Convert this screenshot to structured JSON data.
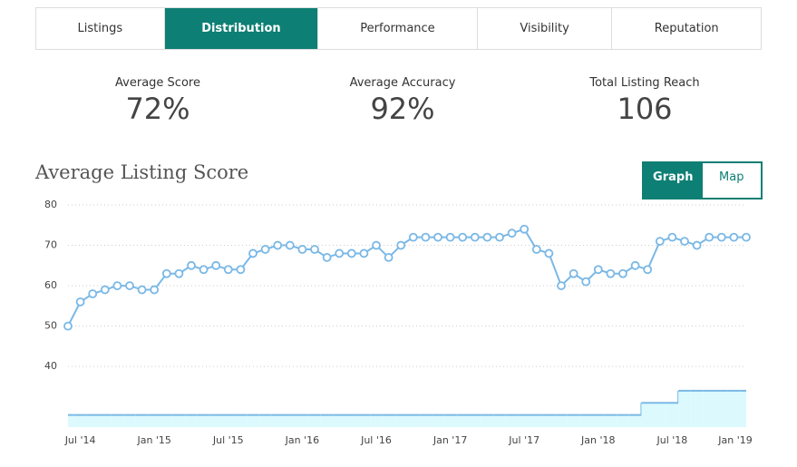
{
  "tabs": [
    {
      "label": "Listings",
      "active": false
    },
    {
      "label": "Distribution",
      "active": true
    },
    {
      "label": "Performance",
      "active": false
    },
    {
      "label": "Visibility",
      "active": false
    },
    {
      "label": "Reputation",
      "active": false
    }
  ],
  "stats": [
    {
      "label": "Average Score",
      "value": "72%"
    },
    {
      "label": "Average Accuracy",
      "value": "92%"
    },
    {
      "label": "Total Listing Reach",
      "value": "106"
    }
  ],
  "toggle": [
    {
      "label": "Graph",
      "active": true
    },
    {
      "label": "Map",
      "active": false
    }
  ],
  "chart_data": {
    "type": "line",
    "title": "Average Listing Score",
    "x": [
      null,
      "Jul '14",
      null,
      null,
      null,
      null,
      null,
      "Jan '15",
      null,
      null,
      null,
      null,
      null,
      "Jul '15",
      null,
      null,
      null,
      null,
      null,
      "Jan '16",
      null,
      null,
      null,
      null,
      null,
      "Jul '16",
      null,
      null,
      null,
      null,
      null,
      "Jan '17",
      null,
      null,
      null,
      null,
      null,
      "Jul '17",
      null,
      null,
      null,
      null,
      null,
      "Jan '18",
      null,
      null,
      null,
      null,
      null,
      "Jul '18",
      null,
      null,
      null,
      null,
      null,
      "Jan '19"
    ],
    "series": [
      {
        "type": "line",
        "color": "#7ab8e6",
        "values": [
          50,
          56,
          58,
          59,
          60,
          60,
          59,
          59,
          63,
          63,
          65,
          64,
          65,
          64,
          64,
          68,
          69,
          70,
          70,
          69,
          69,
          67,
          68,
          68,
          68,
          70,
          67,
          70,
          72,
          72,
          72,
          72,
          72,
          72,
          72,
          72,
          73,
          74,
          69,
          68,
          60,
          63,
          61,
          64,
          63,
          63,
          65,
          64,
          71,
          72,
          71,
          70,
          72,
          72,
          72,
          72
        ]
      },
      {
        "type": "step-area",
        "color": "#7ab8e6",
        "fill": "#dcfafd",
        "values": [
          28,
          28,
          28,
          28,
          28,
          28,
          28,
          28,
          28,
          28,
          28,
          28,
          28,
          28,
          28,
          28,
          28,
          28,
          28,
          28,
          28,
          28,
          28,
          28,
          28,
          28,
          28,
          28,
          28,
          28,
          28,
          28,
          28,
          28,
          28,
          28,
          28,
          28,
          28,
          28,
          28,
          28,
          28,
          28,
          28,
          28,
          28,
          31,
          31,
          31,
          34,
          34,
          34,
          34,
          34,
          34
        ]
      }
    ],
    "ylim": [
      25,
      80
    ],
    "yticks": [
      40,
      50,
      60,
      70,
      80
    ],
    "grid": true
  }
}
